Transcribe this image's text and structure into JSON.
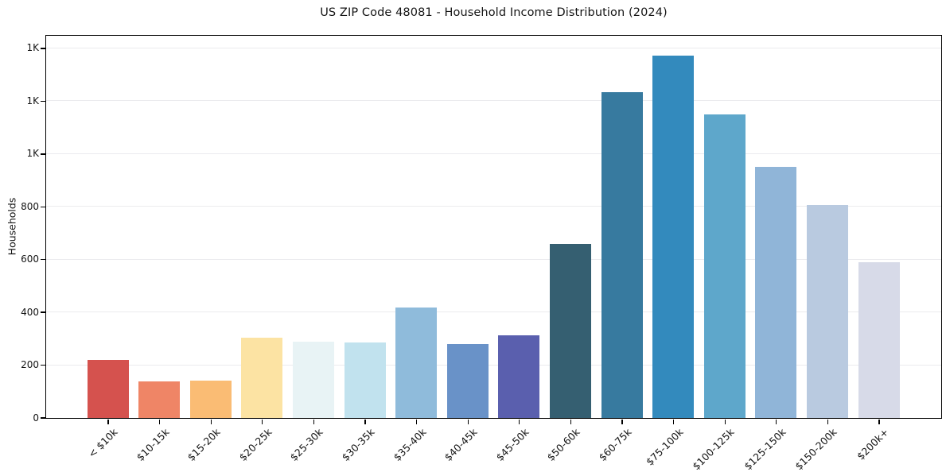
{
  "chart_data": {
    "type": "bar",
    "title": "US ZIP Code 48081 - Household Income Distribution (2024)",
    "xlabel": "",
    "ylabel": "Households",
    "categories": [
      "< $10k",
      "$10-15k",
      "$15-20k",
      "$20-25k",
      "$25-30k",
      "$30-35k",
      "$35-40k",
      "$40-45k",
      "$45-50k",
      "$50-60k",
      "$60-75k",
      "$75-100k",
      "$100-125k",
      "$125-150k",
      "$150-200k",
      "$200k+"
    ],
    "values": [
      218,
      137,
      141,
      303,
      287,
      285,
      417,
      279,
      312,
      658,
      1234,
      1372,
      1150,
      951,
      806,
      590
    ],
    "bar_colors": [
      "#d5524e",
      "#ef8566",
      "#fabc74",
      "#fce3a3",
      "#e8f3f5",
      "#c1e2ee",
      "#8fbbdb",
      "#6992c8",
      "#5a5fae",
      "#355f71",
      "#377a9f",
      "#338abd",
      "#5ea7cb",
      "#90b5d8",
      "#b9cae0",
      "#d7dae8"
    ],
    "ylim": [
      0,
      1448
    ],
    "y_ticks": [
      {
        "value": 0,
        "label": "0"
      },
      {
        "value": 200,
        "label": "200"
      },
      {
        "value": 400,
        "label": "400"
      },
      {
        "value": 600,
        "label": "600"
      },
      {
        "value": 800,
        "label": "800"
      },
      {
        "value": 1000,
        "label": "1K"
      },
      {
        "value": 1200,
        "label": "1K"
      },
      {
        "value": 1400,
        "label": "1K"
      }
    ],
    "grid": "horizontal-only",
    "legend": "none",
    "background_color": "#ffffff",
    "spine_color": "#000000",
    "gridline_color": "#ebebee"
  }
}
